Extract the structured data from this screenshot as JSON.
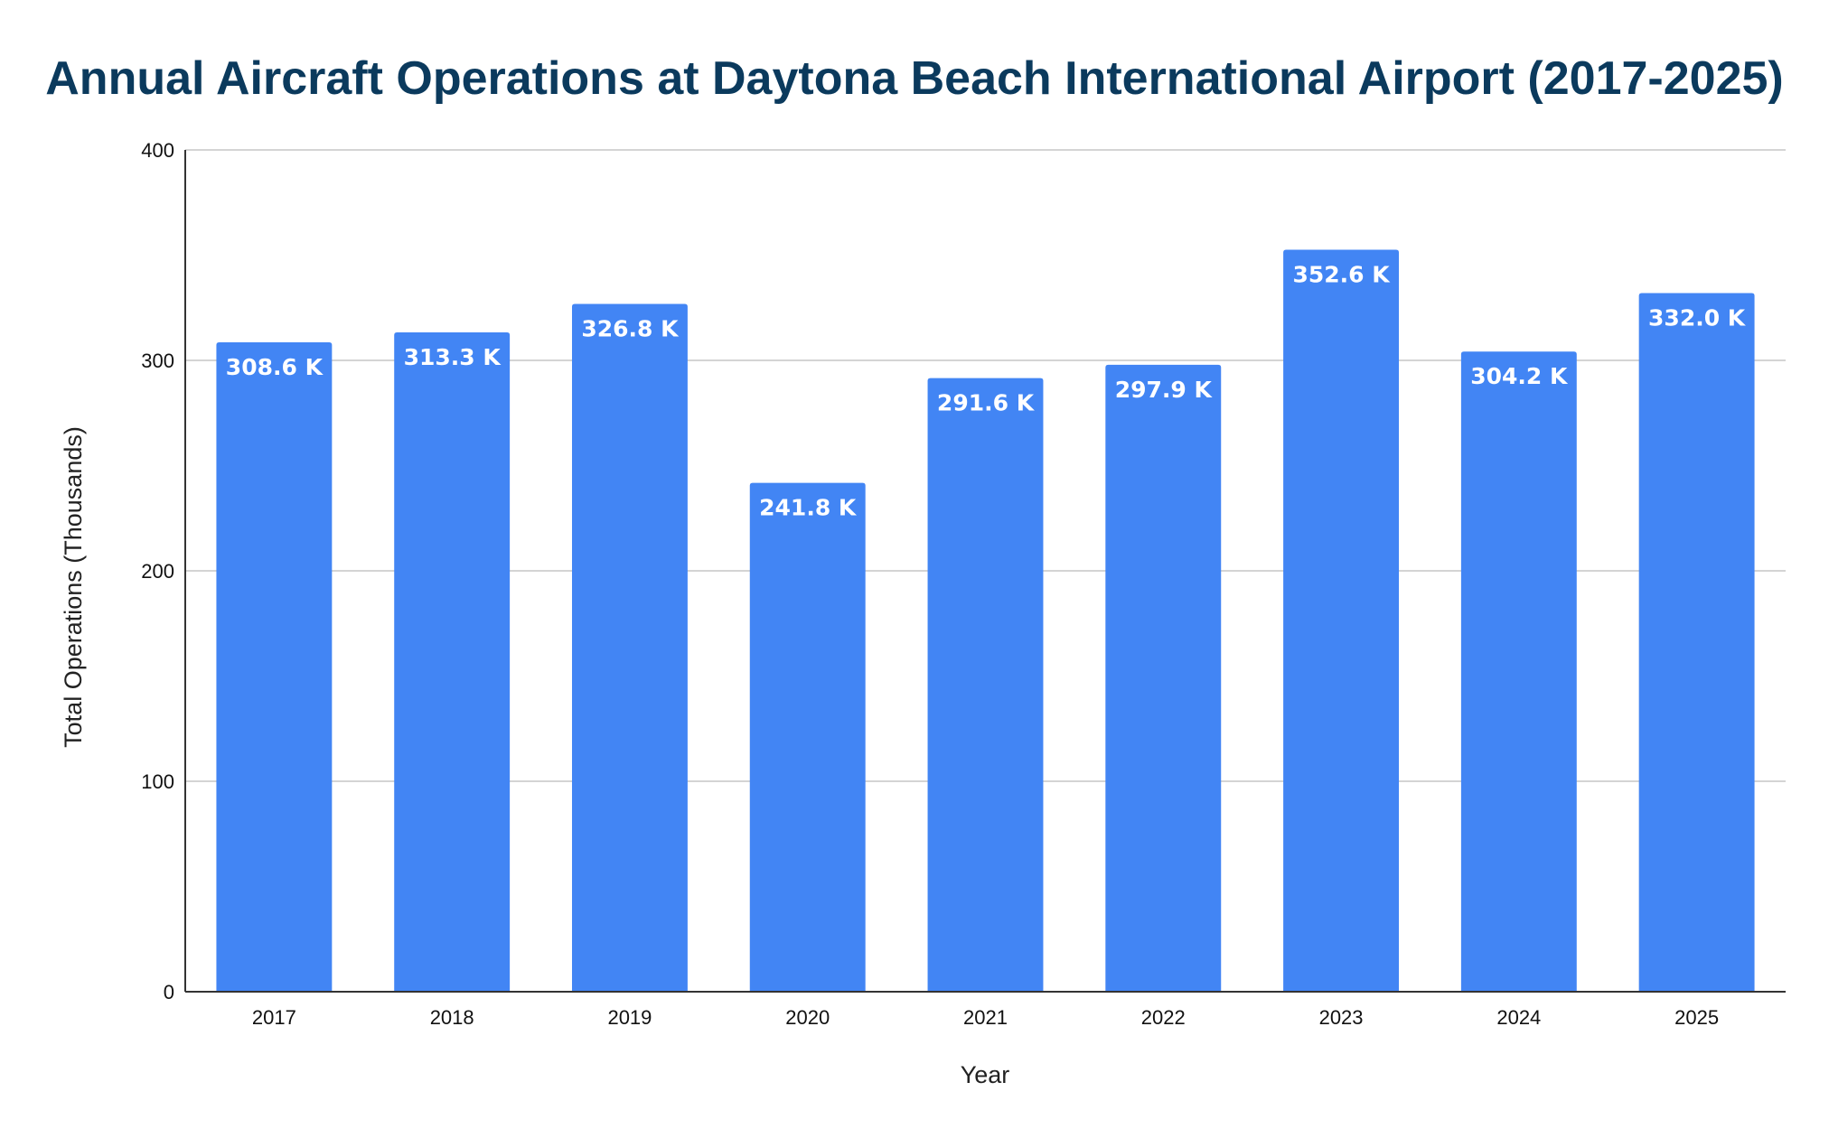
{
  "chart_data": {
    "type": "bar",
    "title": "Annual Aircraft Operations at Daytona Beach International Airport (2017-2025)",
    "xlabel": "Year",
    "ylabel": "Total Operations (Thousands)",
    "categories": [
      "2017",
      "2018",
      "2019",
      "2020",
      "2021",
      "2022",
      "2023",
      "2024",
      "2025"
    ],
    "values": [
      308.6,
      313.3,
      326.8,
      241.8,
      291.6,
      297.9,
      352.6,
      304.2,
      332.0
    ],
    "data_labels": [
      "308.6 K",
      "313.3 K",
      "326.8 K",
      "241.8 K",
      "291.6 K",
      "297.9 K",
      "352.6 K",
      "304.2 K",
      "332.0 K"
    ],
    "ylim": [
      0,
      400
    ],
    "yticks": [
      "0",
      "100",
      "200",
      "300",
      "400"
    ],
    "grid": true,
    "legend": "none",
    "bar_color": "#4285f4",
    "title_color": "#0b3a5d"
  }
}
